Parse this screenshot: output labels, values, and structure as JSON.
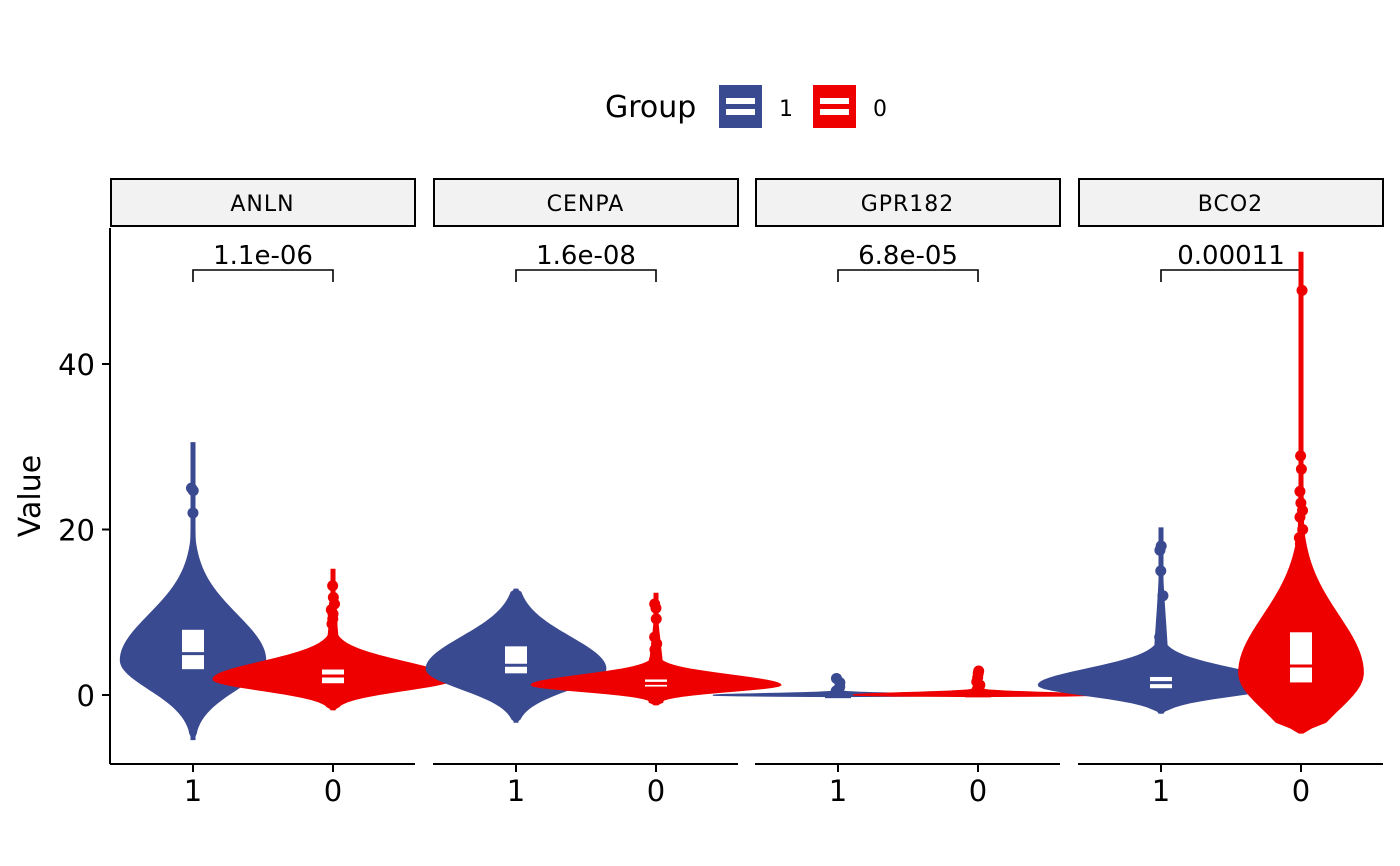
{
  "chart_data": {
    "type": "violin",
    "ylabel": "Value",
    "ylim": [
      -8.2,
      56
    ],
    "y_ticks": [
      0,
      20,
      40
    ],
    "legend": {
      "title": "Group",
      "placement": "top",
      "entries": [
        "1",
        "0"
      ]
    },
    "groups": [
      "1",
      "0"
    ],
    "colors": {
      "1": "#3a4a91",
      "0": "#ee0000"
    },
    "panels": [
      {
        "name": "ANLN",
        "p_value": "1.1e-06",
        "data": {
          "1": {
            "min": -5.4,
            "max": 30.5,
            "q1": 3.0,
            "median": 5.0,
            "q3": 8.0,
            "outliers": [
              22.0,
              24.7,
              25.0
            ]
          },
          "0": {
            "min": -1.8,
            "max": 15.2,
            "q1": 1.3,
            "median": 2.3,
            "q3": 3.2,
            "outliers": [
              8.6,
              9.2,
              9.8,
              10.3,
              11.0,
              11.8,
              13.2
            ]
          }
        }
      },
      {
        "name": "CENPA",
        "p_value": "1.6e-08",
        "data": {
          "1": {
            "min": -3.3,
            "max": 12.8,
            "q1": 2.5,
            "median": 3.6,
            "q3": 6.0,
            "outliers": []
          },
          "0": {
            "min": -1.2,
            "max": 12.3,
            "q1": 0.9,
            "median": 1.4,
            "q3": 2.0,
            "outliers": [
              2.8,
              3.2,
              3.6,
              4.2,
              4.8,
              5.5,
              6.2,
              7.0,
              9.2,
              10.5,
              11.0
            ]
          }
        }
      },
      {
        "name": "GPR182",
        "p_value": "6.8e-05",
        "data": {
          "1": {
            "min": -0.2,
            "max": 2.0,
            "q1": -0.05,
            "median": 0.0,
            "q3": 0.1,
            "outliers": [
              0.5,
              1.0,
              1.5,
              2.0
            ]
          },
          "0": {
            "min": -0.2,
            "max": 2.9,
            "q1": -0.05,
            "median": 0.05,
            "q3": 0.2,
            "outliers": [
              0.6,
              1.2,
              1.6,
              2.1,
              2.6,
              2.9
            ]
          }
        }
      },
      {
        "name": "BCO2",
        "p_value": "0.00011",
        "data": {
          "1": {
            "min": -2.2,
            "max": 20.2,
            "q1": 0.7,
            "median": 1.5,
            "q3": 2.3,
            "outliers": [
              6.2,
              7.0,
              12.0,
              15.0,
              17.5,
              18.0
            ]
          },
          "0": {
            "min": -4.6,
            "max": 53.5,
            "q1": 1.4,
            "median": 3.5,
            "q3": 7.7,
            "outliers": [
              10.0,
              12.0,
              14.0,
              16.0,
              18.3,
              19.0,
              20.0,
              21.5,
              22.3,
              23.2,
              24.6,
              27.3,
              28.9,
              48.9
            ]
          }
        }
      }
    ]
  }
}
